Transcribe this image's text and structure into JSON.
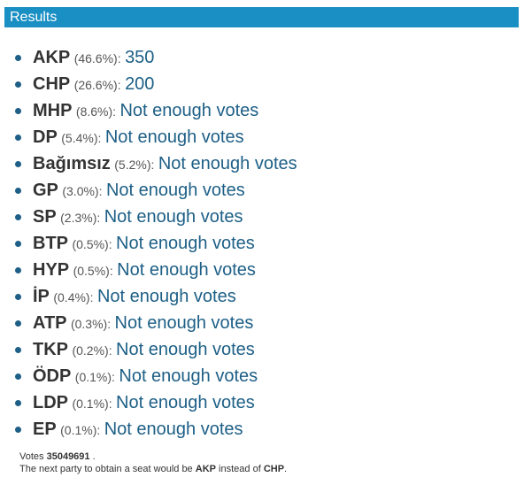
{
  "header": {
    "title": "Results"
  },
  "results": [
    {
      "party": "AKP",
      "share": "(46.6%):",
      "outcome": "350"
    },
    {
      "party": "CHP",
      "share": "(26.6%):",
      "outcome": "200"
    },
    {
      "party": "MHP",
      "share": "(8.6%):",
      "outcome": "Not enough votes"
    },
    {
      "party": "DP",
      "share": "(5.4%):",
      "outcome": "Not enough votes"
    },
    {
      "party": "Bağımsız",
      "share": "(5.2%):",
      "outcome": "Not enough votes"
    },
    {
      "party": "GP",
      "share": "(3.0%):",
      "outcome": "Not enough votes"
    },
    {
      "party": "SP",
      "share": "(2.3%):",
      "outcome": "Not enough votes"
    },
    {
      "party": "BTP",
      "share": "(0.5%):",
      "outcome": "Not enough votes"
    },
    {
      "party": "HYP",
      "share": "(0.5%):",
      "outcome": "Not enough votes"
    },
    {
      "party": "İP",
      "share": "(0.4%):",
      "outcome": "Not enough votes"
    },
    {
      "party": "ATP",
      "share": "(0.3%):",
      "outcome": "Not enough votes"
    },
    {
      "party": "TKP",
      "share": "(0.2%):",
      "outcome": "Not enough votes"
    },
    {
      "party": "ÖDP",
      "share": "(0.1%):",
      "outcome": "Not enough votes"
    },
    {
      "party": "LDP",
      "share": "(0.1%):",
      "outcome": "Not enough votes"
    },
    {
      "party": "EP",
      "share": "(0.1%):",
      "outcome": "Not enough votes"
    }
  ],
  "footer": {
    "votes_label": "Votes",
    "votes_total": "35049691",
    "votes_end": ".",
    "next_text": "The next party to obtain a seat would be",
    "next_party": "AKP",
    "instead_text": "instead of",
    "replaced_party": "CHP",
    "end": "."
  }
}
